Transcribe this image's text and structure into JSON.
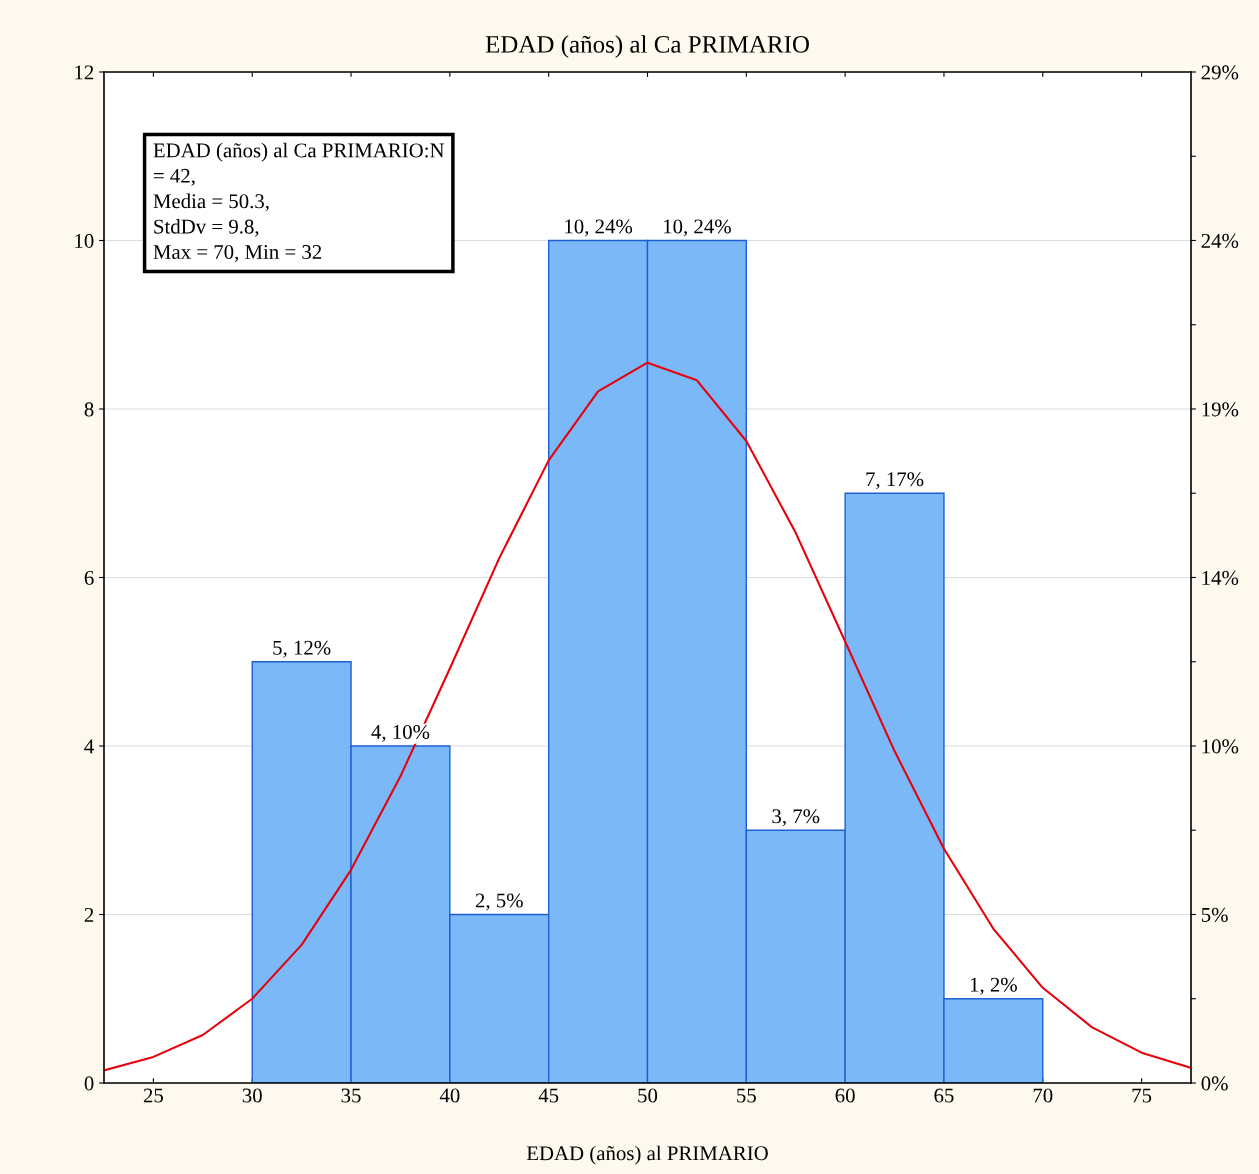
{
  "chart_data": {
    "type": "histogram",
    "title": "EDAD (años) al Ca PRIMARIO",
    "xlabel": "EDAD (años) al PRIMARIO",
    "series": [
      {
        "bins": [
          30,
          35,
          40,
          45,
          50,
          55,
          60,
          65,
          70
        ],
        "values": [
          5,
          4,
          2,
          10,
          10,
          3,
          7,
          1
        ],
        "value_labels": [
          "5, 12%",
          "4, 10%",
          "2, 5%",
          "10, 24%",
          "10, 24%",
          "3, 7%",
          "7, 17%",
          "1, 2%"
        ],
        "color": "#7ab8f7"
      },
      {
        "type": "line",
        "x": [
          22.5,
          25,
          27.5,
          30,
          32.5,
          35,
          37.5,
          40,
          42.5,
          45,
          47.5,
          50,
          52.5,
          55,
          57.5,
          60,
          62.5,
          65,
          67.5,
          70,
          72.5,
          75,
          77.5
        ],
        "values": [
          0.15,
          0.31,
          0.57,
          1.0,
          1.64,
          2.53,
          3.64,
          4.92,
          6.23,
          7.39,
          8.21,
          8.55,
          8.34,
          7.62,
          6.53,
          5.24,
          3.94,
          2.78,
          1.83,
          1.13,
          0.66,
          0.36,
          0.18
        ],
        "color": "#e8000b"
      }
    ],
    "xlim": [
      22.5,
      77.5
    ],
    "xticks": [
      25,
      30,
      35,
      40,
      45,
      50,
      55,
      60,
      65,
      70,
      75
    ],
    "ylim": [
      0,
      12
    ],
    "yticks": [
      0,
      2,
      4,
      6,
      8,
      10,
      12
    ],
    "y2lim": [
      0,
      28.571
    ],
    "y2ticks": [
      {
        "value": 0,
        "label": "0%"
      },
      {
        "value": 2.381,
        "label": null
      },
      {
        "value": 4.762,
        "label": "5%"
      },
      {
        "value": 7.143,
        "label": null
      },
      {
        "value": 9.524,
        "label": "10%"
      },
      {
        "value": 11.905,
        "label": null
      },
      {
        "value": 14.286,
        "label": "14%"
      },
      {
        "value": 16.667,
        "label": null
      },
      {
        "value": 19.048,
        "label": "19%"
      },
      {
        "value": 21.429,
        "label": null
      },
      {
        "value": 23.81,
        "label": "24%"
      },
      {
        "value": 26.19,
        "label": null
      },
      {
        "value": 28.571,
        "label": "29%"
      }
    ],
    "grid": "y",
    "legend": false,
    "annotations": [
      "EDAD (años) al Ca PRIMARIO:N\n= 42,\nMedia = 50.3,\nStdDv = 9.8,\nMax = 70, Min = 32"
    ]
  }
}
